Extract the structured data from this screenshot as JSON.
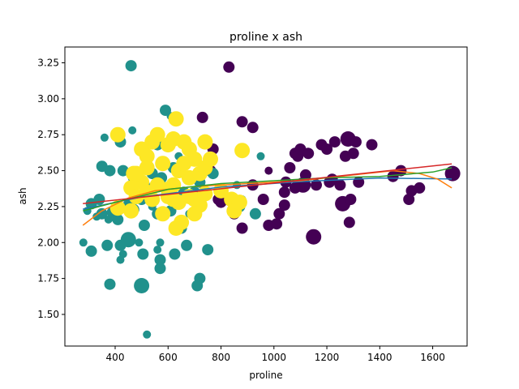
{
  "chart_data": {
    "type": "scatter",
    "title": "proline x ash",
    "xlabel": "proline",
    "ylabel": "ash",
    "xlim": [
      210,
      1730
    ],
    "ylim": [
      1.28,
      3.36
    ],
    "xticks": [
      400,
      600,
      800,
      1000,
      1200,
      1400,
      1600
    ],
    "yticks": [
      1.5,
      1.75,
      2.0,
      2.25,
      2.5,
      2.75,
      3.0,
      3.25
    ],
    "grid": false,
    "legend": "none",
    "colors": {
      "class_0": "#440154",
      "class_1": "#21918c",
      "class_2": "#fde725"
    },
    "series": [
      {
        "color": "#440154",
        "points": [
          [
            830,
            3.22,
            "m"
          ],
          [
            730,
            2.87,
            "m"
          ],
          [
            880,
            2.84,
            "m"
          ],
          [
            920,
            2.8,
            "m"
          ],
          [
            770,
            2.65,
            "m"
          ],
          [
            760,
            2.5,
            "m"
          ],
          [
            790,
            2.3,
            "m"
          ],
          [
            800,
            2.28,
            "m"
          ],
          [
            850,
            2.2,
            "m"
          ],
          [
            880,
            2.1,
            "m"
          ],
          [
            920,
            2.4,
            "m"
          ],
          [
            960,
            2.3,
            "m"
          ],
          [
            980,
            2.12,
            "m"
          ],
          [
            1010,
            2.13,
            "m"
          ],
          [
            1020,
            2.2,
            "m"
          ],
          [
            1040,
            2.26,
            "m"
          ],
          [
            1045,
            2.42,
            "m"
          ],
          [
            1060,
            2.52,
            "m"
          ],
          [
            1080,
            2.62,
            "m"
          ],
          [
            1090,
            2.6,
            "m"
          ],
          [
            1100,
            2.65,
            "m"
          ],
          [
            1110,
            2.4,
            "l"
          ],
          [
            1120,
            2.47,
            "m"
          ],
          [
            1130,
            2.62,
            "m"
          ],
          [
            1150,
            2.04,
            "l"
          ],
          [
            1160,
            2.4,
            "m"
          ],
          [
            1180,
            2.68,
            "m"
          ],
          [
            1200,
            2.65,
            "m"
          ],
          [
            1210,
            2.42,
            "m"
          ],
          [
            1220,
            2.44,
            "m"
          ],
          [
            1230,
            2.7,
            "m"
          ],
          [
            1250,
            2.4,
            "m"
          ],
          [
            1260,
            2.27,
            "l"
          ],
          [
            1270,
            2.6,
            "m"
          ],
          [
            1280,
            2.72,
            "l"
          ],
          [
            1285,
            2.14,
            "m"
          ],
          [
            1290,
            2.3,
            "m"
          ],
          [
            1300,
            2.62,
            "m"
          ],
          [
            1310,
            2.7,
            "m"
          ],
          [
            1320,
            2.42,
            "m"
          ],
          [
            1370,
            2.68,
            "m"
          ],
          [
            1450,
            2.46,
            "m"
          ],
          [
            1480,
            2.5,
            "m"
          ],
          [
            1510,
            2.3,
            "m"
          ],
          [
            1520,
            2.36,
            "m"
          ],
          [
            1550,
            2.38,
            "m"
          ],
          [
            1675,
            2.48,
            "l"
          ],
          [
            1040,
            2.35,
            "m"
          ],
          [
            1080,
            2.38,
            "m"
          ],
          [
            980,
            2.5,
            "s"
          ]
        ]
      },
      {
        "color": "#21918c",
        "points": [
          [
            460,
            3.23,
            "m"
          ],
          [
            590,
            2.92,
            "m"
          ],
          [
            465,
            2.78,
            "s"
          ],
          [
            360,
            2.73,
            "s"
          ],
          [
            420,
            2.7,
            "m"
          ],
          [
            560,
            2.68,
            "m"
          ],
          [
            610,
            2.88,
            "s"
          ],
          [
            350,
            2.53,
            "m"
          ],
          [
            380,
            2.5,
            "m"
          ],
          [
            430,
            2.5,
            "m"
          ],
          [
            470,
            2.45,
            "m"
          ],
          [
            510,
            2.4,
            "m"
          ],
          [
            540,
            2.48,
            "m"
          ],
          [
            575,
            2.45,
            "m"
          ],
          [
            600,
            2.38,
            "m"
          ],
          [
            620,
            2.52,
            "m"
          ],
          [
            640,
            2.6,
            "s"
          ],
          [
            700,
            2.35,
            "m"
          ],
          [
            720,
            2.42,
            "m"
          ],
          [
            860,
            2.4,
            "s"
          ],
          [
            880,
            2.3,
            "s"
          ],
          [
            950,
            2.6,
            "s"
          ],
          [
            340,
            2.3,
            "m"
          ],
          [
            310,
            2.27,
            "m"
          ],
          [
            295,
            2.22,
            "s"
          ],
          [
            330,
            2.18,
            "s"
          ],
          [
            350,
            2.2,
            "m"
          ],
          [
            375,
            2.16,
            "s"
          ],
          [
            390,
            2.21,
            "m"
          ],
          [
            410,
            2.16,
            "m"
          ],
          [
            450,
            2.26,
            "m"
          ],
          [
            470,
            2.23,
            "m"
          ],
          [
            500,
            2.3,
            "m"
          ],
          [
            510,
            2.12,
            "m"
          ],
          [
            540,
            2.25,
            "s"
          ],
          [
            560,
            2.2,
            "m"
          ],
          [
            610,
            2.22,
            "m"
          ],
          [
            650,
            2.1,
            "m"
          ],
          [
            680,
            2.2,
            "s"
          ],
          [
            720,
            2.3,
            "m"
          ],
          [
            280,
            2.0,
            "s"
          ],
          [
            310,
            1.94,
            "m"
          ],
          [
            370,
            1.98,
            "m"
          ],
          [
            420,
            1.98,
            "m"
          ],
          [
            430,
            1.92,
            "s"
          ],
          [
            450,
            2.02,
            "l"
          ],
          [
            490,
            2.0,
            "s"
          ],
          [
            505,
            1.92,
            "m"
          ],
          [
            560,
            1.95,
            "s"
          ],
          [
            570,
            2.0,
            "s"
          ],
          [
            625,
            1.92,
            "m"
          ],
          [
            670,
            1.98,
            "m"
          ],
          [
            750,
            1.95,
            "m"
          ],
          [
            570,
            1.88,
            "m"
          ],
          [
            420,
            1.88,
            "s"
          ],
          [
            570,
            1.82,
            "m"
          ],
          [
            380,
            1.71,
            "m"
          ],
          [
            500,
            1.7,
            "l"
          ],
          [
            720,
            1.75,
            "m"
          ],
          [
            710,
            1.7,
            "m"
          ],
          [
            520,
            1.36,
            "s"
          ],
          [
            930,
            2.2,
            "m"
          ],
          [
            870,
            2.25,
            "m"
          ],
          [
            770,
            2.48,
            "m"
          ],
          [
            660,
            2.35,
            "m"
          ]
        ]
      },
      {
        "color": "#fde725",
        "points": [
          [
            630,
            2.86,
            "l"
          ],
          [
            410,
            2.75,
            "l"
          ],
          [
            500,
            2.65,
            "l"
          ],
          [
            540,
            2.7,
            "l"
          ],
          [
            560,
            2.75,
            "l"
          ],
          [
            600,
            2.68,
            "l"
          ],
          [
            620,
            2.72,
            "l"
          ],
          [
            660,
            2.7,
            "l"
          ],
          [
            680,
            2.65,
            "l"
          ],
          [
            700,
            2.58,
            "l"
          ],
          [
            740,
            2.7,
            "l"
          ],
          [
            520,
            2.52,
            "l"
          ],
          [
            580,
            2.55,
            "l"
          ],
          [
            640,
            2.5,
            "l"
          ],
          [
            660,
            2.55,
            "l"
          ],
          [
            680,
            2.45,
            "l"
          ],
          [
            720,
            2.48,
            "l"
          ],
          [
            740,
            2.52,
            "l"
          ],
          [
            760,
            2.58,
            "l"
          ],
          [
            880,
            2.64,
            "l"
          ],
          [
            470,
            2.48,
            "l"
          ],
          [
            500,
            2.42,
            "l"
          ],
          [
            560,
            2.4,
            "l"
          ],
          [
            600,
            2.37,
            "l"
          ],
          [
            620,
            2.4,
            "l"
          ],
          [
            460,
            2.38,
            "l"
          ],
          [
            480,
            2.32,
            "l"
          ],
          [
            520,
            2.35,
            "l"
          ],
          [
            540,
            2.3,
            "l"
          ],
          [
            600,
            2.32,
            "l"
          ],
          [
            620,
            2.3,
            "l"
          ],
          [
            640,
            2.28,
            "l"
          ],
          [
            680,
            2.32,
            "l"
          ],
          [
            700,
            2.3,
            "l"
          ],
          [
            720,
            2.26,
            "l"
          ],
          [
            740,
            2.34,
            "l"
          ],
          [
            800,
            2.36,
            "l"
          ],
          [
            840,
            2.3,
            "l"
          ],
          [
            850,
            2.22,
            "l"
          ],
          [
            870,
            2.28,
            "l"
          ],
          [
            410,
            2.24,
            "l"
          ],
          [
            460,
            2.22,
            "l"
          ],
          [
            580,
            2.2,
            "l"
          ],
          [
            700,
            2.2,
            "l"
          ],
          [
            630,
            2.1,
            "l"
          ],
          [
            650,
            2.14,
            "l"
          ],
          [
            520,
            2.6,
            "l"
          ],
          [
            480,
            2.48,
            "l"
          ]
        ]
      }
    ],
    "trend_lines": [
      {
        "color": "#1f77b4",
        "x": [
          278,
          500,
          800,
          1100,
          1400,
          1672
        ],
        "y": [
          2.232,
          2.317,
          2.386,
          2.424,
          2.449,
          2.442
        ]
      },
      {
        "color": "#ff7f0e",
        "x": [
          278,
          350,
          450,
          550,
          700,
          900,
          1100,
          1300,
          1450,
          1550,
          1620,
          1672
        ],
        "y": [
          2.12,
          2.22,
          2.31,
          2.36,
          2.39,
          2.41,
          2.43,
          2.47,
          2.5,
          2.48,
          2.44,
          2.38
        ]
      },
      {
        "color": "#2ca02c",
        "x": [
          278,
          400,
          600,
          800,
          1000,
          1200,
          1400,
          1600,
          1672
        ],
        "y": [
          2.22,
          2.28,
          2.37,
          2.41,
          2.43,
          2.45,
          2.46,
          2.49,
          2.52
        ]
      },
      {
        "color": "#d62728",
        "x": [
          278,
          1672
        ],
        "y": [
          2.271,
          2.547
        ]
      }
    ]
  }
}
